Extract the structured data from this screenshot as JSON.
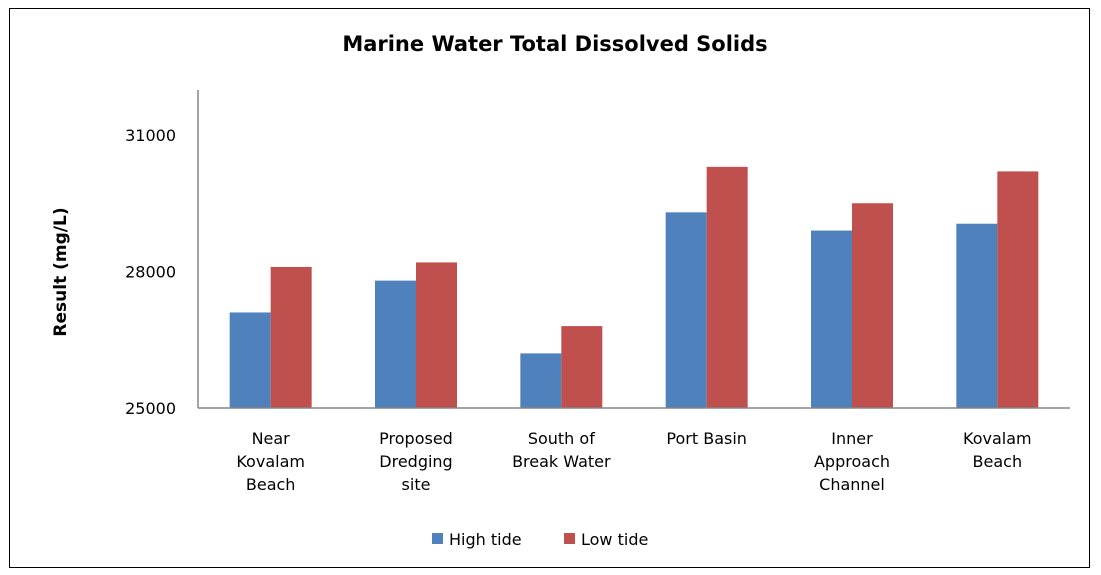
{
  "chart_data": {
    "type": "bar",
    "title": "Marine Water Total Dissolved Solids",
    "xlabel": "",
    "ylabel": "Result (mg/L)",
    "ylim": [
      25000,
      31000
    ],
    "yticks": [
      25000,
      28000,
      31000
    ],
    "grid": false,
    "legend_position": "bottom",
    "categories": [
      [
        "Near",
        "Kovalam",
        "Beach"
      ],
      [
        "Proposed",
        "Dredging",
        "site"
      ],
      [
        "South of",
        "Break Water"
      ],
      [
        "Port Basin"
      ],
      [
        "Inner",
        "Approach",
        "Channel"
      ],
      [
        "Kovalam",
        "Beach"
      ]
    ],
    "series": [
      {
        "name": "High tide",
        "color": "#4F81BD",
        "values": [
          27100,
          27800,
          26200,
          29300,
          28900,
          29050
        ]
      },
      {
        "name": "Low tide",
        "color": "#C0504D",
        "values": [
          28100,
          28200,
          26800,
          30300,
          29500,
          30200
        ]
      }
    ]
  }
}
